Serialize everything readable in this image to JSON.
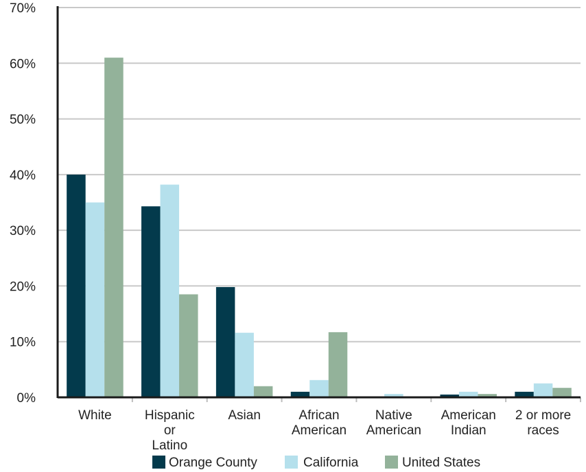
{
  "chart_data": {
    "type": "bar",
    "title": "",
    "xlabel": "",
    "ylabel": "",
    "ylim": [
      0,
      70
    ],
    "y_ticks": [
      "0%",
      "10%",
      "20%",
      "30%",
      "40%",
      "50%",
      "60%",
      "70%"
    ],
    "y_tick_values": [
      0,
      10,
      20,
      30,
      40,
      50,
      60,
      70
    ],
    "grid": true,
    "legend_position": "bottom",
    "categories": [
      [
        "White"
      ],
      [
        "Hispanic",
        "or",
        "Latino"
      ],
      [
        "Asian"
      ],
      [
        "African",
        "American"
      ],
      [
        "Native",
        "American"
      ],
      [
        "American",
        "Indian"
      ],
      [
        "2 or more",
        "races"
      ]
    ],
    "series": [
      {
        "name": "Orange County",
        "color": "#033a4c",
        "values": [
          40.0,
          34.3,
          19.8,
          1.0,
          0.0,
          0.5,
          1.0
        ]
      },
      {
        "name": "California",
        "color": "#b5e0ec",
        "values": [
          35.0,
          38.2,
          11.6,
          3.1,
          0.6,
          1.0,
          2.5
        ]
      },
      {
        "name": "United States",
        "color": "#93b29a",
        "values": [
          61.0,
          18.5,
          2.0,
          11.7,
          0.0,
          0.6,
          1.7
        ]
      }
    ]
  }
}
